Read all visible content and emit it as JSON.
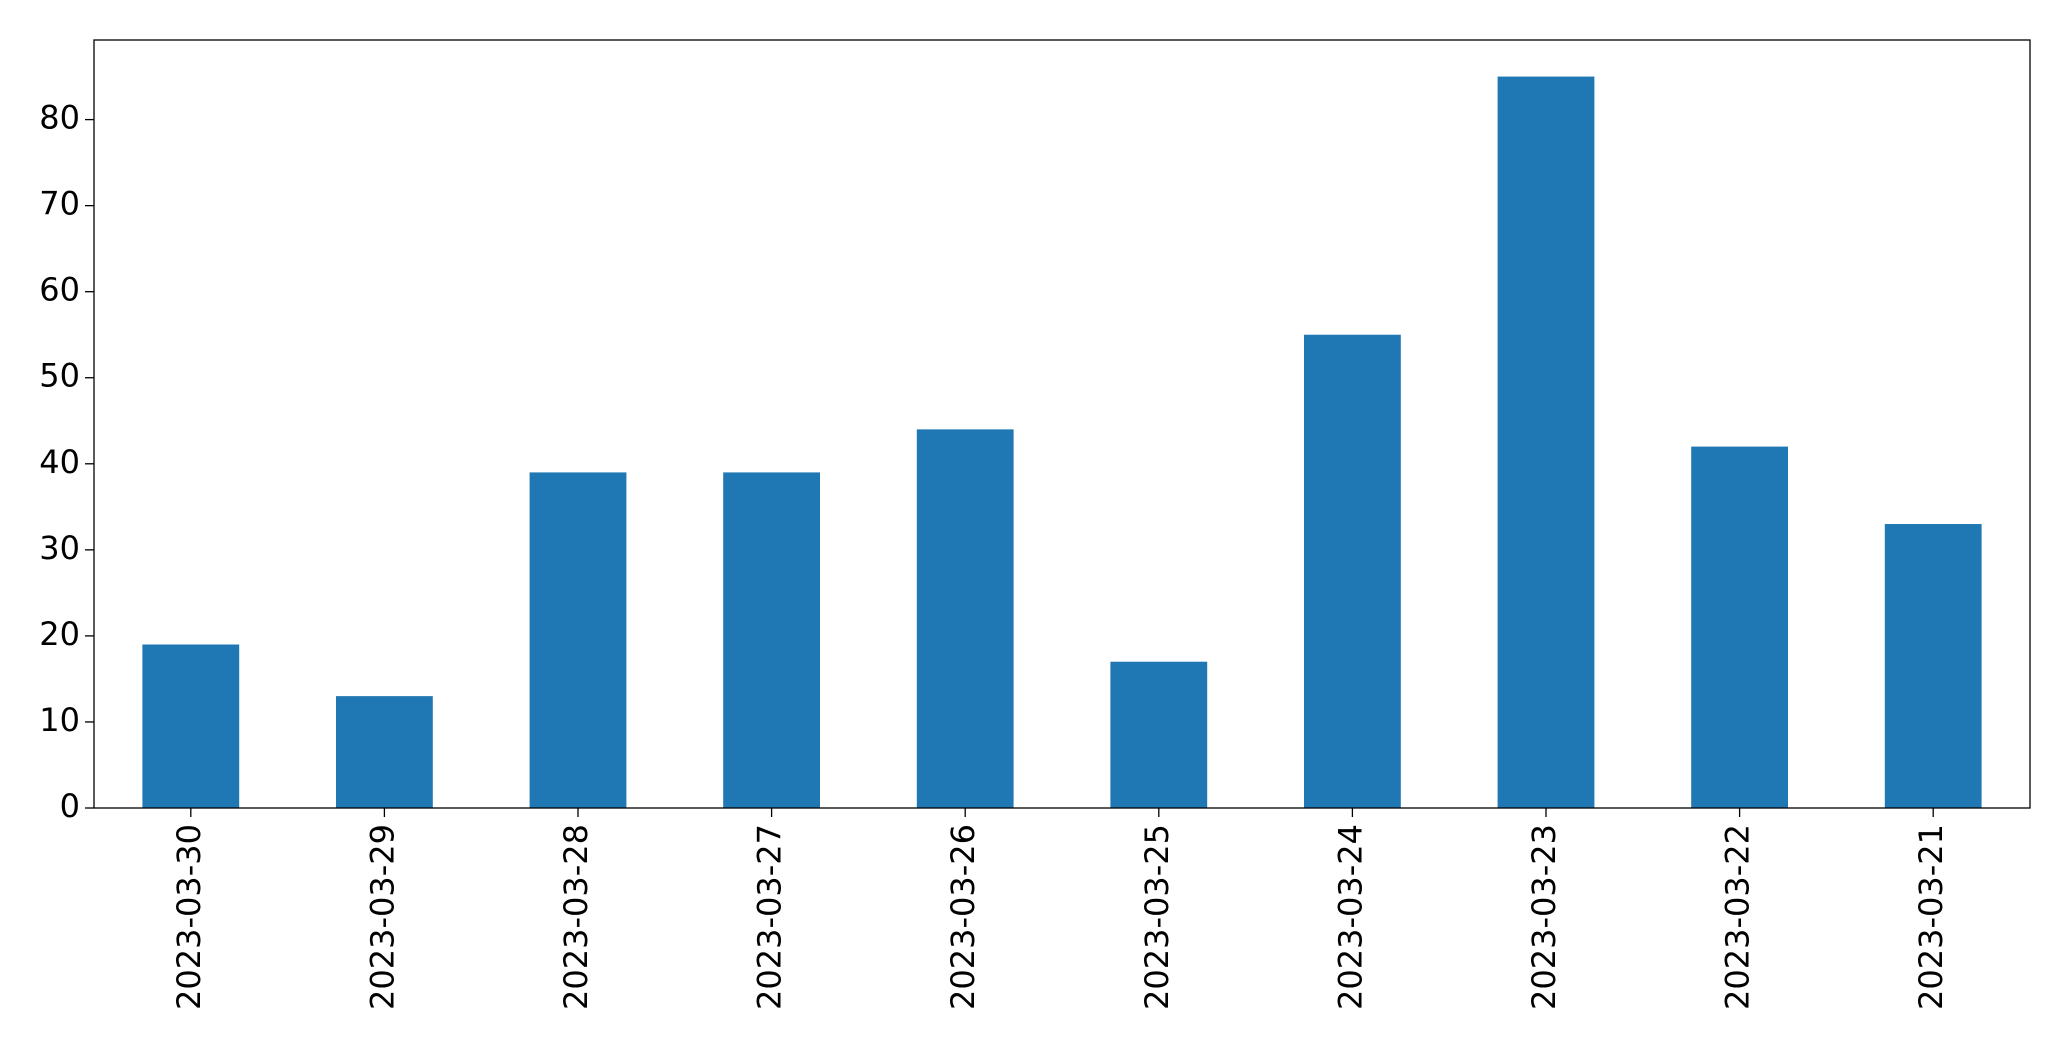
{
  "chart_data": {
    "type": "bar",
    "categories": [
      "2023-03-30",
      "2023-03-29",
      "2023-03-28",
      "2023-03-27",
      "2023-03-26",
      "2023-03-25",
      "2023-03-24",
      "2023-03-23",
      "2023-03-22",
      "2023-03-21"
    ],
    "values": [
      19,
      13,
      39,
      39,
      44,
      17,
      55,
      85,
      42,
      33
    ],
    "color": "#1f77b4",
    "ylim": [
      0,
      89.25
    ],
    "yticks": [
      0,
      10,
      20,
      30,
      40,
      50,
      60,
      70,
      80
    ],
    "grid": false
  }
}
